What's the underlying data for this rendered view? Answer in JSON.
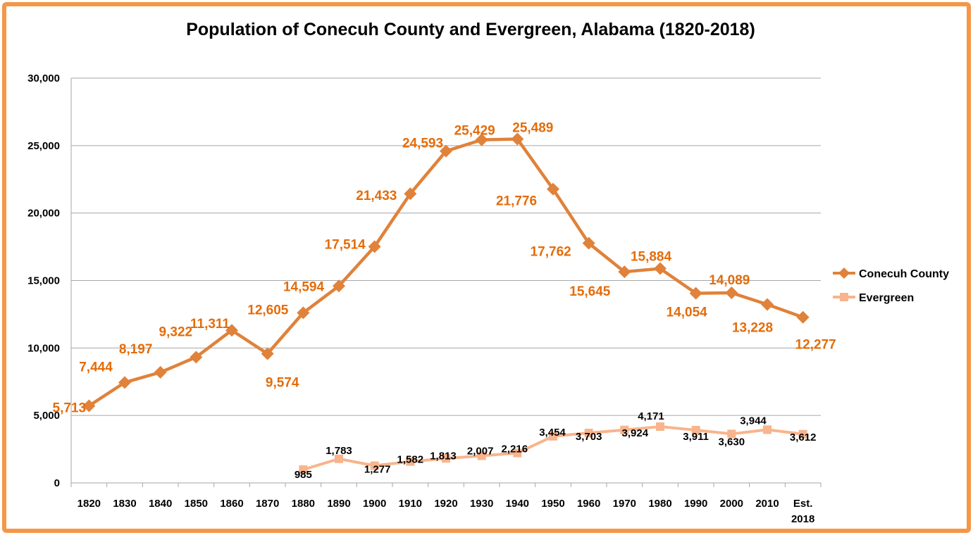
{
  "chart_data": {
    "type": "line",
    "title": "Population of Conecuh County and Evergreen, Alabama (1820-2018)",
    "categories": [
      "1820",
      "1830",
      "1840",
      "1850",
      "1860",
      "1870",
      "1880",
      "1890",
      "1900",
      "1910",
      "1920",
      "1930",
      "1940",
      "1950",
      "1960",
      "1970",
      "1980",
      "1990",
      "2000",
      "2010",
      "Est. 2018"
    ],
    "ylim": [
      0,
      30000
    ],
    "yticks": [
      0,
      5000,
      10000,
      15000,
      20000,
      25000,
      30000
    ],
    "ytick_labels": [
      "0",
      "5,000",
      "10,000",
      "15,000",
      "20,000",
      "25,000",
      "30,000"
    ],
    "grid": true,
    "legend_position": "right",
    "series": [
      {
        "name": "Conecuh County",
        "color": "#e0823a",
        "marker": "diamond",
        "values": [
          5713,
          7444,
          8197,
          9322,
          11311,
          9574,
          12605,
          14594,
          17514,
          21433,
          24593,
          25429,
          25489,
          21776,
          17762,
          15645,
          15884,
          14054,
          14089,
          13228,
          12277
        ],
        "labels": [
          "5,713",
          "7,444",
          "8,197",
          "9,322",
          "11,311",
          "9,574",
          "12,605",
          "14,594",
          "17,514",
          "21,433",
          "24,593",
          "25,429",
          "25,489",
          "21,776",
          "17,762",
          "15,645",
          "15,884",
          "14,054",
          "14,089",
          "13,228",
          "12,277"
        ]
      },
      {
        "name": "Evergreen",
        "color": "#f8b48c",
        "marker": "square",
        "values": [
          null,
          null,
          null,
          null,
          null,
          null,
          985,
          1783,
          1277,
          1582,
          1813,
          2007,
          2216,
          3454,
          3703,
          3924,
          4171,
          3911,
          3630,
          3944,
          3612
        ],
        "labels": [
          null,
          null,
          null,
          null,
          null,
          null,
          "985",
          "1,783",
          "1,277",
          "1,582",
          "1,813",
          "2,007",
          "2,216",
          "3,454",
          "3,703",
          "3,924",
          "4,171",
          "3,911",
          "3,630",
          "3,944",
          "3,612"
        ]
      }
    ],
    "frame_color": "#f79646",
    "label_color_conecuh": "#e46c0a"
  }
}
